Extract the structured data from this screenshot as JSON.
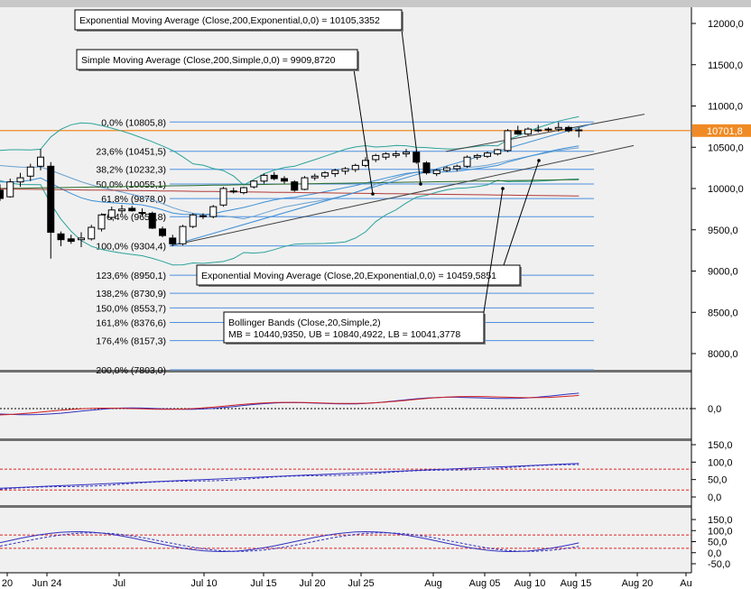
{
  "chart_data": {
    "type": "candlestick",
    "price_axis": {
      "ticks": [
        "12000,0",
        "11500,0",
        "11000,0",
        "10500,0",
        "10000,0",
        "9500,0",
        "9000,0",
        "8500,0",
        "8000,0"
      ],
      "ylim": [
        7800,
        12200
      ]
    },
    "last_price_label": "10701,8",
    "fibonacci_levels": [
      {
        "label": "0,0% (10805,8)",
        "value": 10805.8
      },
      {
        "label": "23,6% (10451,5)",
        "value": 10451.5
      },
      {
        "label": "38,2% (10232,3)",
        "value": 10232.3
      },
      {
        "label": "50,0% (10055,1)",
        "value": 10055.1
      },
      {
        "label": "61,8% (9878,0)",
        "value": 9878.0
      },
      {
        "label": "76,4% (9658,8)",
        "value": 9658.8
      },
      {
        "label": "100,0% (9304,4)",
        "value": 9304.4
      },
      {
        "label": "123,6% (8950,1)",
        "value": 8950.1
      },
      {
        "label": "138,2% (8730,9)",
        "value": 8730.9
      },
      {
        "label": "150,0% (8553,7)",
        "value": 8553.7
      },
      {
        "label": "161,8% (8376,6)",
        "value": 8376.6
      },
      {
        "label": "176,4% (8157,3)",
        "value": 8157.3
      },
      {
        "label": "200,0% (7803,0)",
        "value": 7803.0
      }
    ],
    "annotations": [
      {
        "text": "Exponential Moving Average (Close,200,Exponential,0,0) = 10105,3352"
      },
      {
        "text": "Simple Moving Average (Close,200,Simple,0,0) = 9909,8720"
      },
      {
        "text": "Exponential Moving Average (Close,20,Exponential,0,0) = 10459,5851"
      },
      {
        "text": "Bollinger Bands (Close,20,Simple,2)",
        "text2": "MB = 10440,9350, UB = 10840,4922, LB = 10041,3778"
      }
    ],
    "x_ticks": [
      "20",
      "Jun 24",
      "Jul",
      "Jul 10",
      "Jul 15",
      "Jul 20",
      "Jul 25",
      "Aug",
      "Aug 05",
      "Aug 10",
      "Aug 15",
      "Aug 20",
      "Au"
    ],
    "candles": [
      {
        "o": 9980,
        "h": 10050,
        "l": 9850,
        "c": 9880
      },
      {
        "o": 9900,
        "h": 10120,
        "l": 9890,
        "c": 10080
      },
      {
        "o": 10080,
        "h": 10190,
        "l": 10020,
        "c": 10130
      },
      {
        "o": 10150,
        "h": 10300,
        "l": 10090,
        "c": 10260
      },
      {
        "o": 10270,
        "h": 10480,
        "l": 10220,
        "c": 10380
      },
      {
        "o": 10270,
        "h": 10320,
        "l": 9150,
        "c": 9470
      },
      {
        "o": 9450,
        "h": 9480,
        "l": 9300,
        "c": 9380
      },
      {
        "o": 9390,
        "h": 9440,
        "l": 9330,
        "c": 9360
      },
      {
        "o": 9380,
        "h": 9470,
        "l": 9290,
        "c": 9400
      },
      {
        "o": 9390,
        "h": 9560,
        "l": 9370,
        "c": 9530
      },
      {
        "o": 9510,
        "h": 9700,
        "l": 9480,
        "c": 9680
      },
      {
        "o": 9650,
        "h": 9780,
        "l": 9620,
        "c": 9740
      },
      {
        "o": 9730,
        "h": 9800,
        "l": 9690,
        "c": 9750
      },
      {
        "o": 9760,
        "h": 9790,
        "l": 9720,
        "c": 9730
      },
      {
        "o": 9700,
        "h": 9760,
        "l": 9660,
        "c": 9710
      },
      {
        "o": 9700,
        "h": 9720,
        "l": 9510,
        "c": 9520
      },
      {
        "o": 9510,
        "h": 9540,
        "l": 9410,
        "c": 9430
      },
      {
        "o": 9400,
        "h": 9440,
        "l": 9300,
        "c": 9330
      },
      {
        "o": 9330,
        "h": 9560,
        "l": 9310,
        "c": 9540
      },
      {
        "o": 9540,
        "h": 9700,
        "l": 9520,
        "c": 9680
      },
      {
        "o": 9670,
        "h": 9700,
        "l": 9630,
        "c": 9660
      },
      {
        "o": 9660,
        "h": 9800,
        "l": 9640,
        "c": 9780
      },
      {
        "o": 9800,
        "h": 10020,
        "l": 9780,
        "c": 10000
      },
      {
        "o": 9970,
        "h": 10010,
        "l": 9940,
        "c": 9960
      },
      {
        "o": 9950,
        "h": 10020,
        "l": 9930,
        "c": 10010
      },
      {
        "o": 10020,
        "h": 10100,
        "l": 10000,
        "c": 10090
      },
      {
        "o": 10090,
        "h": 10180,
        "l": 10060,
        "c": 10160
      },
      {
        "o": 10160,
        "h": 10200,
        "l": 10100,
        "c": 10120
      },
      {
        "o": 10120,
        "h": 10150,
        "l": 10060,
        "c": 10090
      },
      {
        "o": 10080,
        "h": 10100,
        "l": 9960,
        "c": 9980
      },
      {
        "o": 9990,
        "h": 10150,
        "l": 9980,
        "c": 10130
      },
      {
        "o": 10130,
        "h": 10180,
        "l": 10100,
        "c": 10150
      },
      {
        "o": 10150,
        "h": 10210,
        "l": 10120,
        "c": 10190
      },
      {
        "o": 10180,
        "h": 10240,
        "l": 10140,
        "c": 10220
      },
      {
        "o": 10210,
        "h": 10260,
        "l": 10170,
        "c": 10240
      },
      {
        "o": 10230,
        "h": 10300,
        "l": 10200,
        "c": 10280
      },
      {
        "o": 10280,
        "h": 10380,
        "l": 10260,
        "c": 10340
      },
      {
        "o": 10350,
        "h": 10420,
        "l": 10320,
        "c": 10400
      },
      {
        "o": 10380,
        "h": 10440,
        "l": 10350,
        "c": 10420
      },
      {
        "o": 10400,
        "h": 10460,
        "l": 10370,
        "c": 10420
      },
      {
        "o": 10420,
        "h": 10480,
        "l": 10380,
        "c": 10440
      },
      {
        "o": 10440,
        "h": 10470,
        "l": 10300,
        "c": 10320
      },
      {
        "o": 10310,
        "h": 10330,
        "l": 10170,
        "c": 10190
      },
      {
        "o": 10180,
        "h": 10240,
        "l": 10150,
        "c": 10220
      },
      {
        "o": 10220,
        "h": 10270,
        "l": 10200,
        "c": 10250
      },
      {
        "o": 10240,
        "h": 10290,
        "l": 10210,
        "c": 10270
      },
      {
        "o": 10270,
        "h": 10400,
        "l": 10250,
        "c": 10380
      },
      {
        "o": 10380,
        "h": 10420,
        "l": 10350,
        "c": 10400
      },
      {
        "o": 10390,
        "h": 10450,
        "l": 10370,
        "c": 10430
      },
      {
        "o": 10420,
        "h": 10480,
        "l": 10400,
        "c": 10470
      },
      {
        "o": 10460,
        "h": 10720,
        "l": 10440,
        "c": 10700
      },
      {
        "o": 10700,
        "h": 10760,
        "l": 10650,
        "c": 10660
      },
      {
        "o": 10660,
        "h": 10740,
        "l": 10640,
        "c": 10720
      },
      {
        "o": 10700,
        "h": 10770,
        "l": 10680,
        "c": 10710
      },
      {
        "o": 10710,
        "h": 10740,
        "l": 10690,
        "c": 10720
      },
      {
        "o": 10720,
        "h": 10800,
        "l": 10690,
        "c": 10740
      },
      {
        "o": 10740,
        "h": 10760,
        "l": 10680,
        "c": 10700
      },
      {
        "o": 10710,
        "h": 10740,
        "l": 10620,
        "c": 10701.8
      }
    ],
    "panel2_ticks": [
      "0,0"
    ],
    "panel3_ticks": [
      "150,0",
      "100,0",
      "50,0",
      "0,0"
    ],
    "panel4_ticks": [
      "150,0",
      "100,0",
      "50,0",
      "0,0",
      "-50,0"
    ]
  },
  "colors": {
    "background": "#f0f0f0",
    "fib_line": "#4d8fe0",
    "last_price": "#f08a24",
    "bb_band": "#2aa39a",
    "ema200": "#2b6e2b",
    "sma200": "#b23a3a",
    "ema20": "#3d8fd6",
    "trendline": "#404040",
    "osc_blue": "#3030c0",
    "osc_red": "#d02020",
    "ref_red": "#e02020"
  }
}
